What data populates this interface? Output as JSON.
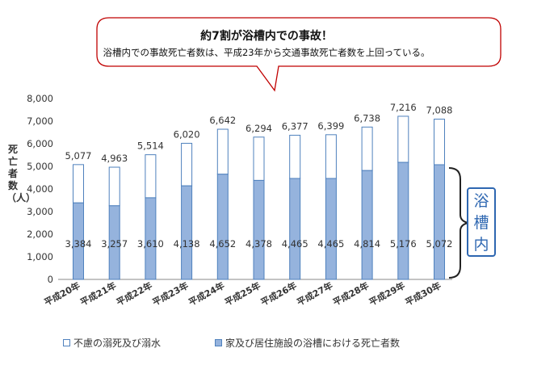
{
  "callout": {
    "title": "約7割が浴槽内での事故！",
    "subtitle": "浴槽内での事故死亡者数は、平成23年から交通事故死亡者数を上回っている。"
  },
  "bracket_label": "浴槽内",
  "colors": {
    "top": "#ffffff",
    "bottom": "#95b3dd",
    "border": "#4f81bd",
    "callout_border": "#c00000",
    "bracket": "#2e67b1"
  },
  "chart_data": {
    "type": "bar",
    "stacked": true,
    "title": "",
    "xlabel": "",
    "ylabel": "死亡者数（人）",
    "ylim": [
      0,
      8000
    ],
    "yticks": [
      "0",
      "1,000",
      "2,000",
      "3,000",
      "4,000",
      "5,000",
      "6,000",
      "7,000",
      "8,000"
    ],
    "categories": [
      "平成20年",
      "平成21年",
      "平成22年",
      "平成23年",
      "平成24年",
      "平成25年",
      "平成26年",
      "平成27年",
      "平成28年",
      "平成29年",
      "平成30年"
    ],
    "totals": [
      5077,
      4963,
      5514,
      6020,
      6642,
      6294,
      6377,
      6399,
      6738,
      7216,
      7088
    ],
    "total_labels": [
      "5,077",
      "4,963",
      "5,514",
      "6,020",
      "6,642",
      "6,294",
      "6,377",
      "6,399",
      "6,738",
      "7,216",
      "7,088"
    ],
    "series": [
      {
        "name": "家及び居住施設の浴槽における死亡者数",
        "values": [
          3384,
          3257,
          3610,
          4138,
          4652,
          4378,
          4465,
          4465,
          4814,
          5176,
          5072
        ],
        "labels": [
          "3,384",
          "3,257",
          "3,610",
          "4,138",
          "4,652",
          "4,378",
          "4,465",
          "4,465",
          "4,814",
          "5,176",
          "5,072"
        ]
      },
      {
        "name": "不慮の溺死及び溺水",
        "values": [
          1693,
          1706,
          1904,
          1882,
          1990,
          1916,
          1912,
          1934,
          1924,
          2040,
          2016
        ]
      }
    ],
    "legend": {
      "items": [
        "不慮の溺死及び溺水",
        "家及び居住施設の浴槽における死亡者数"
      ],
      "position": "bottom"
    },
    "grid": false
  }
}
